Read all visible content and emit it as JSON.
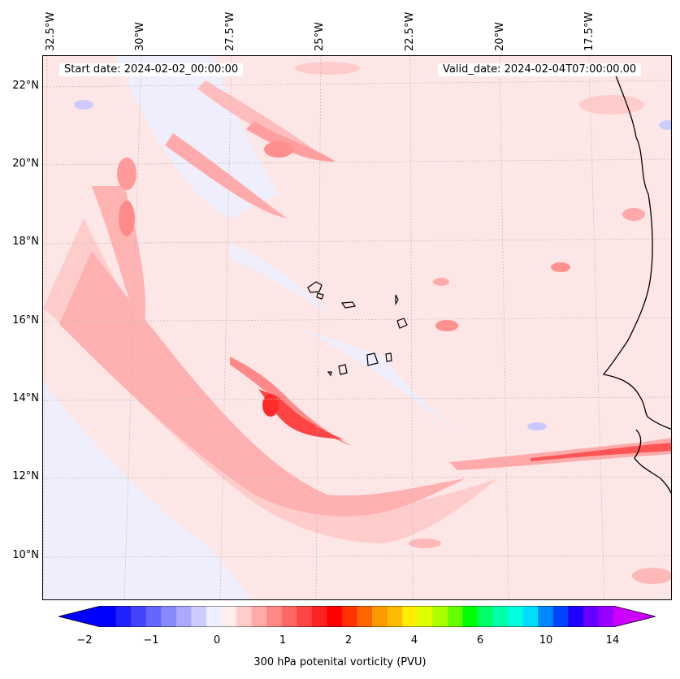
{
  "map": {
    "start_date": "Start date: 2024-02-02_00:00:00",
    "valid_date": "Valid_date: 2024-02-04T07:00:00.00",
    "lat_labels": [
      "22°N",
      "20°N",
      "18°N",
      "16°N",
      "14°N",
      "12°N",
      "10°N"
    ],
    "lon_labels": [
      "32.5°W",
      "30°W",
      "27.5°W",
      "25°W",
      "22.5°W",
      "20°W",
      "17.5°W"
    ],
    "field": "300 hPa potential vorticity",
    "regions": [
      "Cabo Verde islands",
      "West African coast"
    ]
  },
  "colorbar": {
    "label": "300 hPa potenital vorticity (PVU)",
    "ticks": [
      "−2",
      "−1",
      "0",
      "1",
      "2",
      "4",
      "6",
      "10",
      "14"
    ],
    "colors": [
      "#0000ff",
      "#2222ff",
      "#4444ff",
      "#6666ff",
      "#8888ff",
      "#aaaaff",
      "#ccccff",
      "#eeeeff",
      "#ffeeee",
      "#ffcccc",
      "#ffaaaa",
      "#ff8888",
      "#ff6666",
      "#ff4444",
      "#ff2222",
      "#ff0000",
      "#ff3300",
      "#ff6600",
      "#ff9900",
      "#ffbb00",
      "#ffee00",
      "#ddff00",
      "#aaff00",
      "#66ff00",
      "#00ff00",
      "#00ff66",
      "#00ffaa",
      "#00ffdd",
      "#00ddff",
      "#0088ff",
      "#0044ff",
      "#2200ff",
      "#6600ff",
      "#9900ff"
    ],
    "extend_low": "#0000ff",
    "extend_high": "#cc00ff"
  }
}
